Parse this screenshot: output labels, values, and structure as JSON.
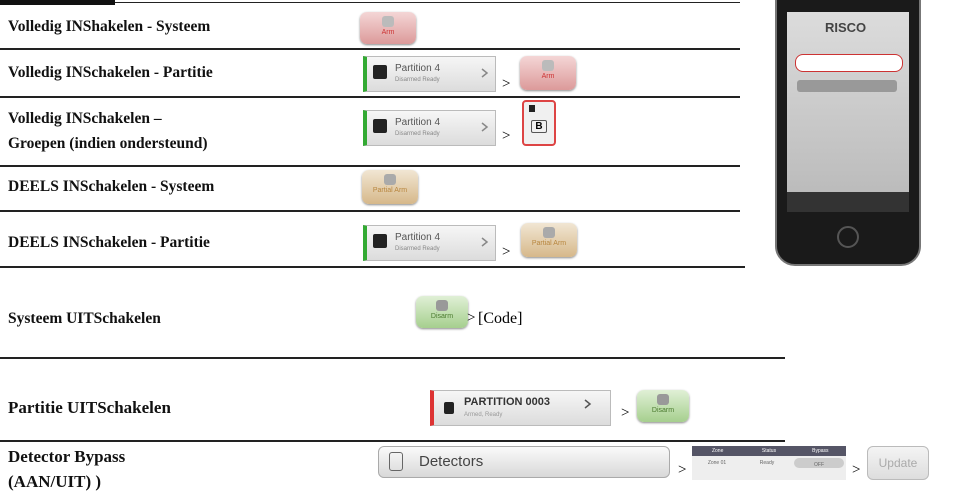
{
  "rows": [
    {
      "label": [
        "Volledig INShakelen - Systeem"
      ]
    },
    {
      "label": [
        "Volledig INSchakelen - Partitie"
      ]
    },
    {
      "label": [
        "Volledig INSchakelen –",
        "Groepen (indien ondersteund)"
      ]
    },
    {
      "label": [
        "DEELS INSchakelen - Systeem"
      ]
    },
    {
      "label": [
        "DEELS INSchakelen - Partitie"
      ]
    },
    {
      "label": [
        "Systeem UITSchakelen"
      ]
    },
    {
      "label": [
        "Partitie UITSchakelen"
      ]
    },
    {
      "label": [
        "Detector Bypass",
        "(AAN/UIT) )"
      ]
    }
  ],
  "ui": {
    "arm": "Arm",
    "partition_name": "Partition 4",
    "partition_status": "Disarmed Ready",
    "group": "B",
    "partial_arm": "Partial Arm",
    "disarm": "Disarm",
    "partition_name_2": "PARTITION 0003",
    "partition_status_2": "Armed, Ready",
    "detectors": "Detectors",
    "update": "Update",
    "table_headers": [
      "Zone",
      "Status",
      "Bypass"
    ],
    "table_row": [
      "Zone 01",
      "Ready",
      "OFF"
    ],
    "brand": "RISCO"
  },
  "separator": ">",
  "code": "[Code]"
}
